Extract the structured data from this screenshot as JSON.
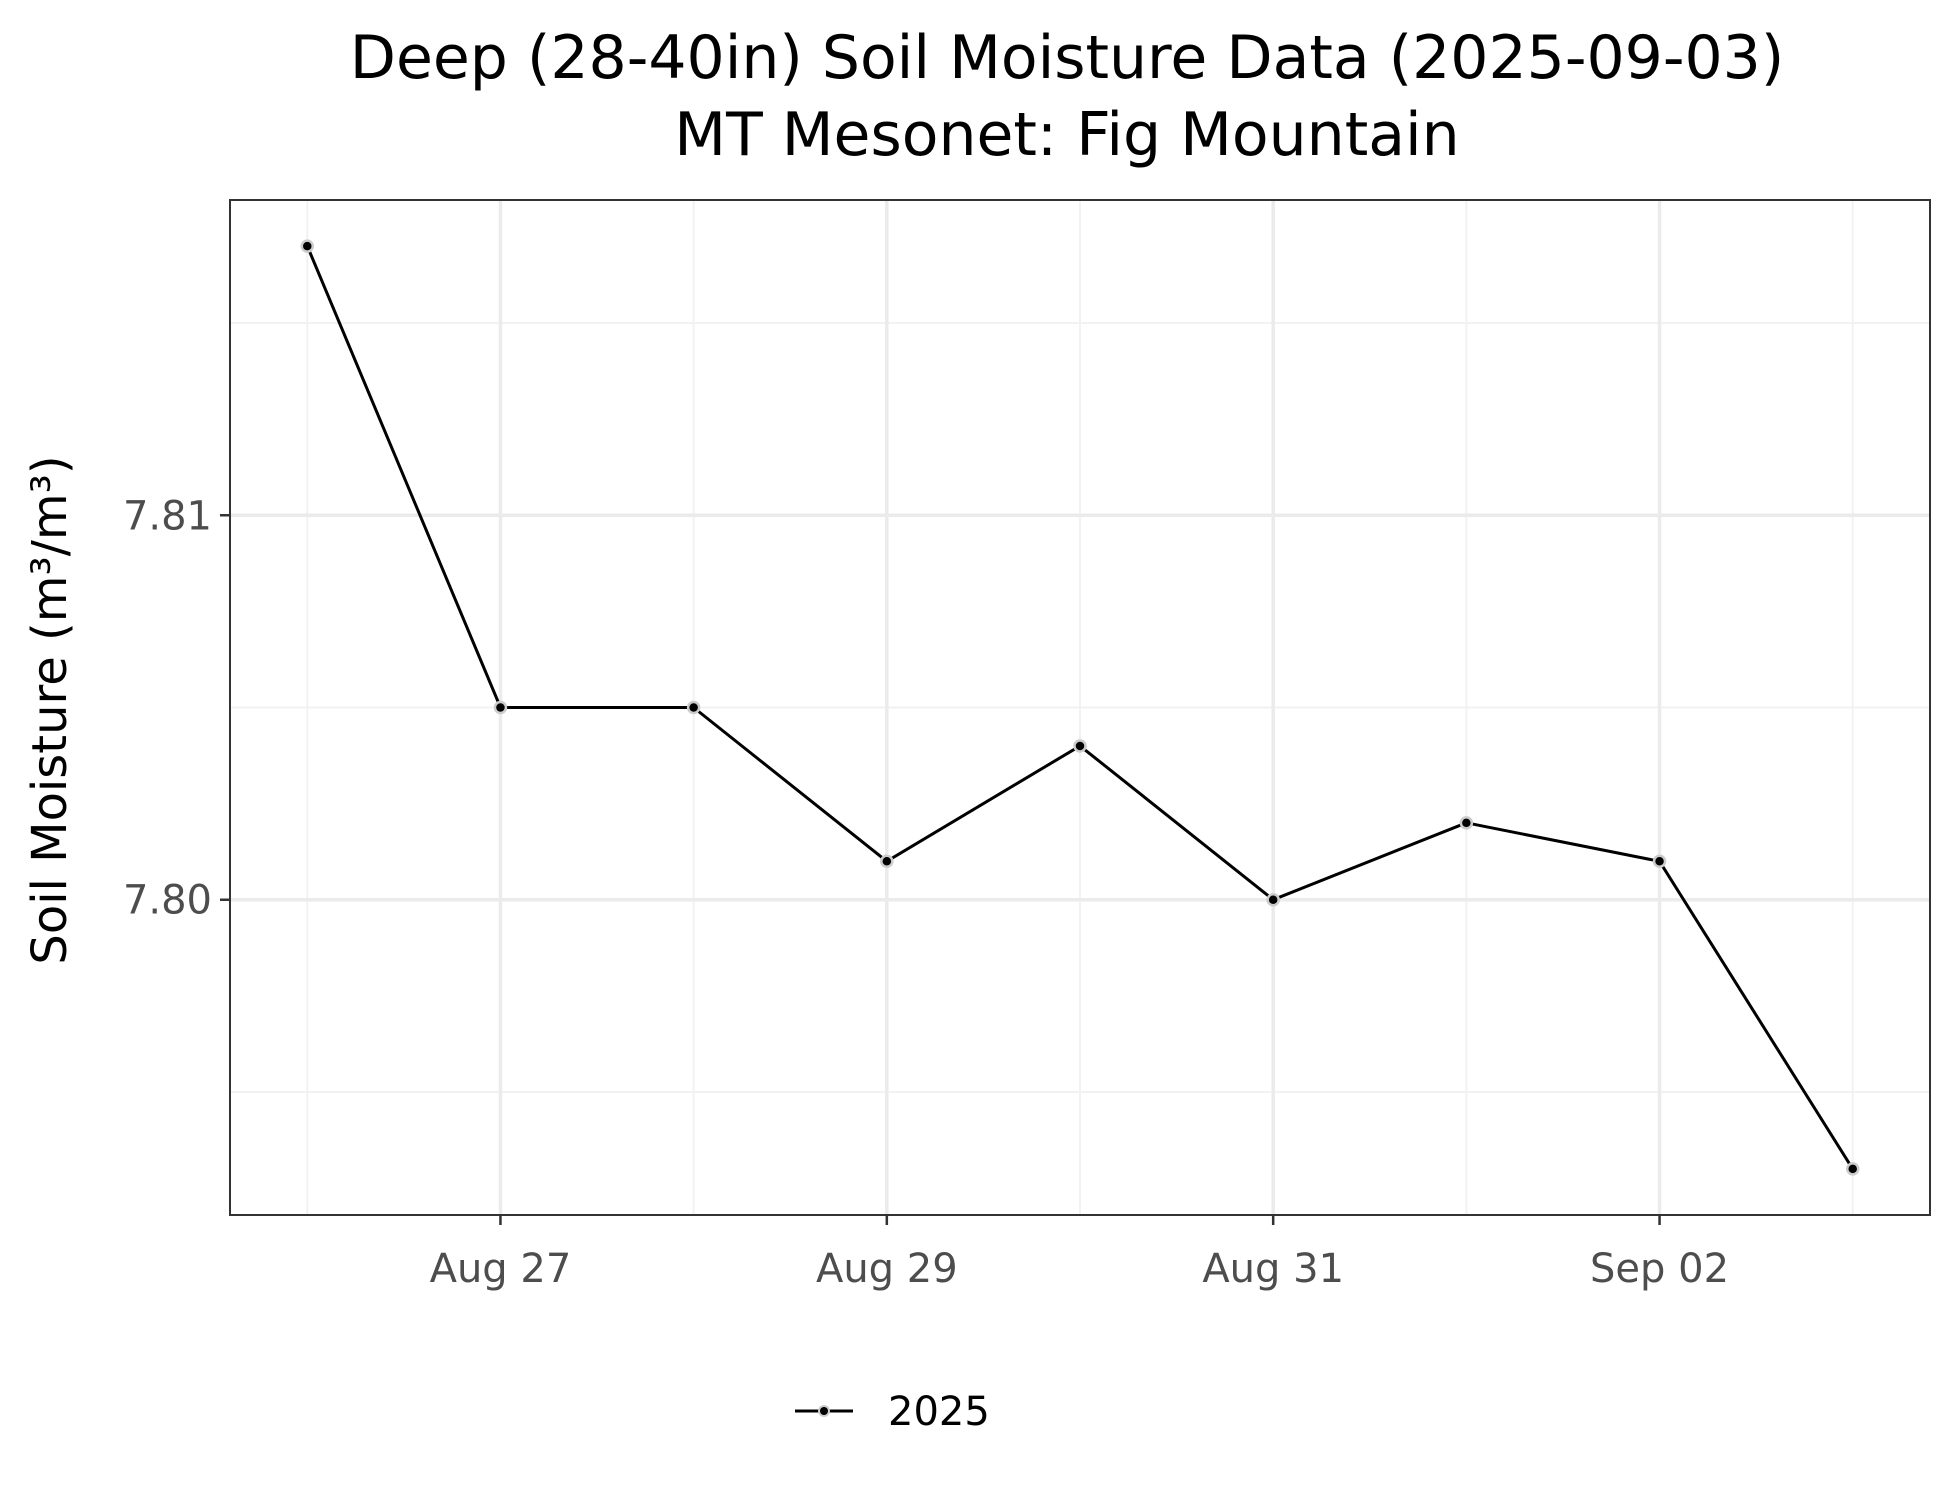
{
  "chart_data": {
    "type": "line",
    "title": "Deep (28-40in) Soil Moisture Data (2025-09-03)",
    "subtitle": "MT Mesonet: Fig Mountain",
    "xlabel": "",
    "ylabel": "Soil Moisture (m³/m³)",
    "x": [
      "2025-08-26",
      "2025-08-27",
      "2025-08-28",
      "2025-08-29",
      "2025-08-30",
      "2025-08-31",
      "2025-09-01",
      "2025-09-02",
      "2025-09-03"
    ],
    "series": [
      {
        "name": "2025",
        "values": [
          7.817,
          7.805,
          7.805,
          7.801,
          7.804,
          7.8,
          7.802,
          7.801,
          7.793
        ]
      }
    ],
    "xlim": [
      "2025-08-25T14:24",
      "2025-09-03T09:36"
    ],
    "ylim": [
      7.7918,
      7.8182
    ],
    "x_ticks": [
      {
        "value": "2025-08-27",
        "label": "Aug 27"
      },
      {
        "value": "2025-08-29",
        "label": "Aug 29"
      },
      {
        "value": "2025-08-31",
        "label": "Aug 31"
      },
      {
        "value": "2025-09-02",
        "label": "Sep 02"
      }
    ],
    "y_ticks": [
      {
        "value": 7.8,
        "label": "7.80"
      },
      {
        "value": 7.81,
        "label": "7.81"
      }
    ],
    "y_minor_ticks": [
      7.795,
      7.805,
      7.815
    ],
    "grid": true,
    "legend_position": "bottom",
    "colors": {
      "line": "#000000",
      "point_fill": "#000000",
      "point_outline": "#cccccc",
      "major_grid": "#ebebeb",
      "minor_grid": "#f2f2f2",
      "panel_border": "#333333",
      "tick_text": "#4d4d4d"
    }
  }
}
